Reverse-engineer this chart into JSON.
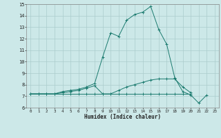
{
  "xlabel": "Humidex (Indice chaleur)",
  "bg_color": "#cce8e8",
  "grid_color": "#aacccc",
  "line_color": "#1a7a6e",
  "x_values": [
    0,
    1,
    2,
    3,
    4,
    5,
    6,
    7,
    8,
    9,
    10,
    11,
    12,
    13,
    14,
    15,
    16,
    17,
    18,
    19,
    20,
    21,
    22,
    23
  ],
  "line_max": [
    7.2,
    7.2,
    7.2,
    7.2,
    7.4,
    7.5,
    7.6,
    7.8,
    8.1,
    10.4,
    12.5,
    12.2,
    13.6,
    14.1,
    14.3,
    14.8,
    12.8,
    11.5,
    8.6,
    7.4,
    7.1,
    6.4,
    7.1,
    null
  ],
  "line_avg": [
    7.2,
    7.2,
    7.2,
    7.2,
    7.3,
    7.4,
    7.5,
    7.7,
    7.9,
    7.2,
    7.2,
    7.5,
    7.8,
    8.0,
    8.2,
    8.4,
    8.5,
    8.5,
    8.5,
    7.8,
    7.3,
    null,
    null,
    null
  ],
  "line_min": [
    7.2,
    7.2,
    7.2,
    7.2,
    7.2,
    7.2,
    7.2,
    7.2,
    7.2,
    7.2,
    7.2,
    7.2,
    7.2,
    7.2,
    7.2,
    7.2,
    7.2,
    7.2,
    7.2,
    7.2,
    7.2,
    null,
    null,
    null
  ],
  "ylim": [
    6,
    15
  ],
  "xlim": [
    -0.5,
    23.5
  ],
  "yticks": [
    6,
    7,
    8,
    9,
    10,
    11,
    12,
    13,
    14,
    15
  ],
  "xticks": [
    0,
    1,
    2,
    3,
    4,
    5,
    6,
    7,
    8,
    9,
    10,
    11,
    12,
    13,
    14,
    15,
    16,
    17,
    18,
    19,
    20,
    21,
    22,
    23
  ]
}
